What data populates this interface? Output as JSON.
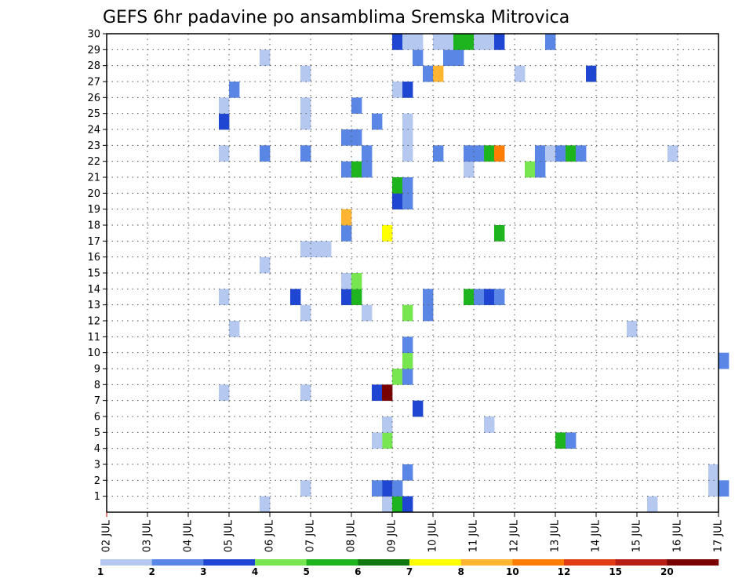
{
  "chart_data": {
    "type": "heatmap",
    "title": "GEFS 6hr padavine po ansamblima Sremska Mitrovica",
    "y_ticks": [
      "1",
      "2",
      "3",
      "4",
      "5",
      "6",
      "7",
      "8",
      "9",
      "10",
      "11",
      "12",
      "13",
      "14",
      "15",
      "16",
      "17",
      "18",
      "19",
      "20",
      "21",
      "22",
      "23",
      "24",
      "25",
      "26",
      "27",
      "28",
      "29",
      "30"
    ],
    "x_ticks": [
      "02 JUL",
      "03 JUL",
      "04 JUL",
      "05 JUL",
      "06 JUL",
      "07 JUL",
      "08 JUL",
      "09 JUL",
      "10 JUL",
      "11 JUL",
      "12 JUL",
      "13 JUL",
      "14 JUL",
      "15 JUL",
      "16 JUL",
      "17 JUL"
    ],
    "x_range_days": [
      0,
      15
    ],
    "y_range_members": [
      0,
      30
    ],
    "grid": true,
    "colorbar": {
      "labels": [
        "1",
        "2",
        "3",
        "4",
        "5",
        "6",
        "7",
        "8",
        "10",
        "12",
        "15",
        "20"
      ],
      "colors": [
        "#b4c8f0",
        "#5a87e6",
        "#1e46d2",
        "#78e650",
        "#1eb41e",
        "#0f780f",
        "#ffff00",
        "#ffb432",
        "#ff7d00",
        "#e13c14",
        "#b41e14",
        "#780000"
      ]
    },
    "cells": [
      {
        "day": 6.75,
        "member": 0,
        "cat": 0
      },
      {
        "day": 7.0,
        "member": 0,
        "cat": 4
      },
      {
        "day": 7.25,
        "member": 0,
        "cat": 2
      },
      {
        "day": 3.75,
        "member": 0,
        "cat": 0
      },
      {
        "day": 13.25,
        "member": 0,
        "cat": 0
      },
      {
        "day": 6.75,
        "member": 1,
        "cat": 2
      },
      {
        "day": 7.0,
        "member": 1,
        "cat": 1
      },
      {
        "day": 4.75,
        "member": 1,
        "cat": 0
      },
      {
        "day": 6.5,
        "member": 1,
        "cat": 1
      },
      {
        "day": 14.75,
        "member": 1,
        "cat": 0
      },
      {
        "day": 15.0,
        "member": 1,
        "cat": 1
      },
      {
        "day": 7.25,
        "member": 2,
        "cat": 1
      },
      {
        "day": 14.75,
        "member": 2,
        "cat": 0
      },
      {
        "day": 6.75,
        "member": 4,
        "cat": 3
      },
      {
        "day": 6.5,
        "member": 4,
        "cat": 0
      },
      {
        "day": 11.0,
        "member": 4,
        "cat": 4
      },
      {
        "day": 11.25,
        "member": 4,
        "cat": 1
      },
      {
        "day": 6.75,
        "member": 5,
        "cat": 0
      },
      {
        "day": 9.25,
        "member": 5,
        "cat": 0
      },
      {
        "day": 7.5,
        "member": 6,
        "cat": 2
      },
      {
        "day": 2.75,
        "member": 7,
        "cat": 0
      },
      {
        "day": 4.75,
        "member": 7,
        "cat": 0
      },
      {
        "day": 6.5,
        "member": 7,
        "cat": 2
      },
      {
        "day": 6.75,
        "member": 7,
        "cat": 11
      },
      {
        "day": 7.0,
        "member": 8,
        "cat": 3
      },
      {
        "day": 7.25,
        "member": 8,
        "cat": 1
      },
      {
        "day": 7.25,
        "member": 9,
        "cat": 3
      },
      {
        "day": 15.0,
        "member": 9,
        "cat": 1
      },
      {
        "day": 7.25,
        "member": 10,
        "cat": 1
      },
      {
        "day": 3.0,
        "member": 11,
        "cat": 0
      },
      {
        "day": 12.75,
        "member": 11,
        "cat": 0
      },
      {
        "day": 4.75,
        "member": 12,
        "cat": 0
      },
      {
        "day": 6.25,
        "member": 12,
        "cat": 0
      },
      {
        "day": 7.25,
        "member": 12,
        "cat": 3
      },
      {
        "day": 7.75,
        "member": 12,
        "cat": 1
      },
      {
        "day": 2.75,
        "member": 13,
        "cat": 0
      },
      {
        "day": 4.5,
        "member": 13,
        "cat": 2
      },
      {
        "day": 5.75,
        "member": 13,
        "cat": 2
      },
      {
        "day": 6.0,
        "member": 13,
        "cat": 4
      },
      {
        "day": 7.75,
        "member": 13,
        "cat": 1
      },
      {
        "day": 8.75,
        "member": 13,
        "cat": 4
      },
      {
        "day": 9.0,
        "member": 13,
        "cat": 1
      },
      {
        "day": 9.25,
        "member": 13,
        "cat": 2
      },
      {
        "day": 9.5,
        "member": 13,
        "cat": 1
      },
      {
        "day": 5.75,
        "member": 14,
        "cat": 0
      },
      {
        "day": 6.0,
        "member": 14,
        "cat": 3
      },
      {
        "day": 3.75,
        "member": 15,
        "cat": 0
      },
      {
        "day": 4.75,
        "member": 16,
        "cat": 0
      },
      {
        "day": 5.0,
        "member": 16,
        "cat": 0
      },
      {
        "day": 5.25,
        "member": 16,
        "cat": 0
      },
      {
        "day": 5.75,
        "member": 17,
        "cat": 1
      },
      {
        "day": 6.75,
        "member": 17,
        "cat": 6
      },
      {
        "day": 9.5,
        "member": 17,
        "cat": 4
      },
      {
        "day": 5.75,
        "member": 18,
        "cat": 7
      },
      {
        "day": 7.0,
        "member": 19,
        "cat": 2
      },
      {
        "day": 7.25,
        "member": 19,
        "cat": 1
      },
      {
        "day": 7.0,
        "member": 20,
        "cat": 4
      },
      {
        "day": 7.25,
        "member": 20,
        "cat": 1
      },
      {
        "day": 5.75,
        "member": 21,
        "cat": 1
      },
      {
        "day": 6.0,
        "member": 21,
        "cat": 4
      },
      {
        "day": 6.25,
        "member": 21,
        "cat": 1
      },
      {
        "day": 8.75,
        "member": 21,
        "cat": 0
      },
      {
        "day": 10.25,
        "member": 21,
        "cat": 3
      },
      {
        "day": 10.5,
        "member": 21,
        "cat": 1
      },
      {
        "day": 2.75,
        "member": 22,
        "cat": 0
      },
      {
        "day": 3.75,
        "member": 22,
        "cat": 1
      },
      {
        "day": 4.75,
        "member": 22,
        "cat": 1
      },
      {
        "day": 6.25,
        "member": 22,
        "cat": 1
      },
      {
        "day": 7.25,
        "member": 22,
        "cat": 0
      },
      {
        "day": 8.0,
        "member": 22,
        "cat": 1
      },
      {
        "day": 8.75,
        "member": 22,
        "cat": 1
      },
      {
        "day": 9.0,
        "member": 22,
        "cat": 1
      },
      {
        "day": 9.25,
        "member": 22,
        "cat": 4
      },
      {
        "day": 9.5,
        "member": 22,
        "cat": 8
      },
      {
        "day": 10.5,
        "member": 22,
        "cat": 1
      },
      {
        "day": 10.75,
        "member": 22,
        "cat": 0
      },
      {
        "day": 11.0,
        "member": 22,
        "cat": 1
      },
      {
        "day": 11.25,
        "member": 22,
        "cat": 4
      },
      {
        "day": 11.5,
        "member": 22,
        "cat": 1
      },
      {
        "day": 13.75,
        "member": 22,
        "cat": 0
      },
      {
        "day": 5.75,
        "member": 23,
        "cat": 1
      },
      {
        "day": 6.0,
        "member": 23,
        "cat": 1
      },
      {
        "day": 7.25,
        "member": 23,
        "cat": 0
      },
      {
        "day": 2.75,
        "member": 24,
        "cat": 2
      },
      {
        "day": 4.75,
        "member": 24,
        "cat": 0
      },
      {
        "day": 6.5,
        "member": 24,
        "cat": 1
      },
      {
        "day": 7.25,
        "member": 24,
        "cat": 0
      },
      {
        "day": 2.75,
        "member": 25,
        "cat": 0
      },
      {
        "day": 4.75,
        "member": 25,
        "cat": 0
      },
      {
        "day": 6.0,
        "member": 25,
        "cat": 1
      },
      {
        "day": 3.0,
        "member": 26,
        "cat": 1
      },
      {
        "day": 7.0,
        "member": 26,
        "cat": 0
      },
      {
        "day": 7.25,
        "member": 26,
        "cat": 2
      },
      {
        "day": 4.75,
        "member": 27,
        "cat": 0
      },
      {
        "day": 7.75,
        "member": 27,
        "cat": 1
      },
      {
        "day": 8.0,
        "member": 27,
        "cat": 7
      },
      {
        "day": 10.0,
        "member": 27,
        "cat": 0
      },
      {
        "day": 11.75,
        "member": 27,
        "cat": 2
      },
      {
        "day": 3.75,
        "member": 28,
        "cat": 0
      },
      {
        "day": 7.5,
        "member": 28,
        "cat": 1
      },
      {
        "day": 8.25,
        "member": 28,
        "cat": 1
      },
      {
        "day": 8.5,
        "member": 28,
        "cat": 1
      },
      {
        "day": 7.0,
        "member": 29,
        "cat": 2
      },
      {
        "day": 7.25,
        "member": 29,
        "cat": 0
      },
      {
        "day": 7.5,
        "member": 29,
        "cat": 0
      },
      {
        "day": 8.0,
        "member": 29,
        "cat": 0
      },
      {
        "day": 8.25,
        "member": 29,
        "cat": 0
      },
      {
        "day": 8.5,
        "member": 29,
        "cat": 4
      },
      {
        "day": 8.75,
        "member": 29,
        "cat": 4
      },
      {
        "day": 9.0,
        "member": 29,
        "cat": 0
      },
      {
        "day": 9.25,
        "member": 29,
        "cat": 0
      },
      {
        "day": 9.5,
        "member": 29,
        "cat": 2
      },
      {
        "day": 10.75,
        "member": 29,
        "cat": 1
      }
    ]
  }
}
